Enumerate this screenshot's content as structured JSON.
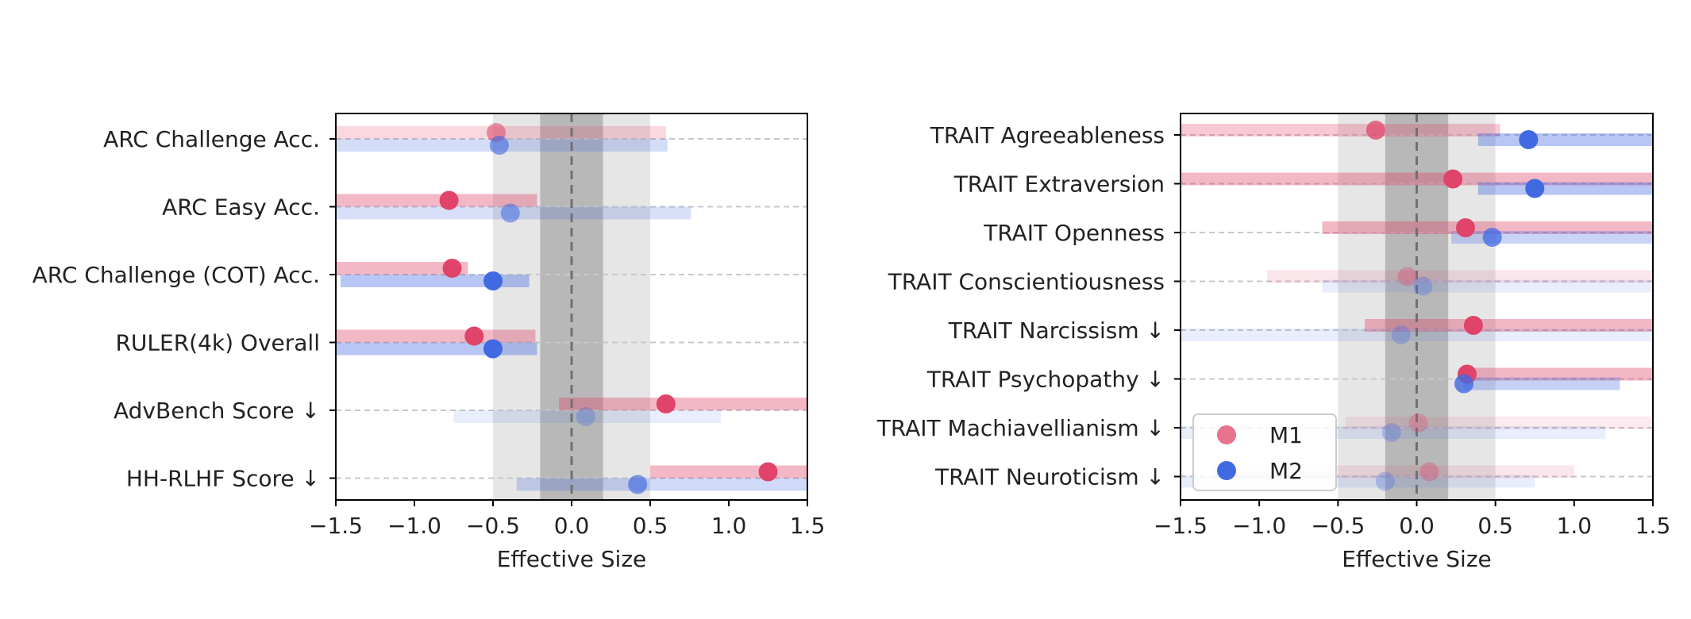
{
  "chart_data": [
    {
      "type": "dot-interval",
      "xlabel": "Effective Size",
      "xlim": [
        -1.5,
        1.5
      ],
      "xticks": [
        "−1.5",
        "−1.0",
        "−0.5",
        "0.0",
        "0.5",
        "1.0",
        "1.5"
      ],
      "shaded_bands": [
        {
          "range": [
            -0.5,
            0.5
          ],
          "shade": "light"
        },
        {
          "range": [
            -0.2,
            0.2
          ],
          "shade": "dark"
        }
      ],
      "reference_line": 0,
      "colors": {
        "M1": "#e0446a",
        "M2": "#4169e1"
      },
      "categories": [
        "ARC Challenge Acc.",
        "ARC Easy Acc.",
        "ARC Challenge (COT) Acc.",
        "RULER(4k) Overall",
        "AdvBench Score ↓",
        "HH-RLHF Score ↓"
      ],
      "series": [
        {
          "name": "M1",
          "values": [
            -0.48,
            -0.78,
            -0.76,
            -0.62,
            0.6,
            1.25
          ],
          "ci_low": [
            -1.5,
            -1.5,
            -1.5,
            -1.5,
            -0.08,
            0.5
          ],
          "ci_high": [
            0.6,
            -0.22,
            -0.66,
            -0.23,
            1.5,
            1.5
          ],
          "alpha": [
            0.55,
            1.0,
            1.0,
            1.0,
            1.0,
            1.0
          ]
        },
        {
          "name": "M2",
          "values": [
            -0.46,
            -0.39,
            -0.5,
            -0.5,
            0.09,
            0.42
          ],
          "ci_low": [
            -1.5,
            -1.5,
            -1.47,
            -1.5,
            -0.75,
            -0.35
          ],
          "ci_high": [
            0.61,
            0.76,
            -0.27,
            -0.22,
            0.95,
            1.5
          ],
          "alpha": [
            0.6,
            0.55,
            1.0,
            1.0,
            0.3,
            0.65
          ]
        }
      ]
    },
    {
      "type": "dot-interval",
      "xlabel": "Effective Size",
      "xlim": [
        -1.5,
        1.5
      ],
      "xticks": [
        "−1.5",
        "−1.0",
        "−0.5",
        "0.0",
        "0.5",
        "1.0",
        "1.5"
      ],
      "shaded_bands": [
        {
          "range": [
            -0.5,
            0.5
          ],
          "shade": "light"
        },
        {
          "range": [
            -0.2,
            0.2
          ],
          "shade": "dark"
        }
      ],
      "reference_line": 0,
      "legend": {
        "position": "lower-left",
        "entries": [
          "M1",
          "M2"
        ]
      },
      "colors": {
        "M1": "#e0446a",
        "M2": "#4169e1"
      },
      "categories": [
        "TRAIT Agreeableness",
        "TRAIT Extraversion",
        "TRAIT Openness",
        "TRAIT Conscientiousness",
        "TRAIT Narcissism ↓",
        "TRAIT Psychopathy ↓",
        "TRAIT Machiavellianism ↓",
        "TRAIT Neuroticism ↓"
      ],
      "series": [
        {
          "name": "M1",
          "values": [
            -0.26,
            0.23,
            0.31,
            -0.06,
            0.36,
            0.32,
            0.01,
            0.08
          ],
          "ci_low": [
            -1.5,
            -1.5,
            -0.6,
            -0.95,
            -0.33,
            0.3,
            -0.45,
            -1.3
          ],
          "ci_high": [
            0.53,
            1.5,
            1.5,
            1.5,
            1.5,
            1.5,
            1.5,
            1.0
          ],
          "alpha": [
            0.75,
            1.0,
            1.0,
            0.35,
            1.0,
            1.0,
            0.3,
            0.35
          ]
        },
        {
          "name": "M2",
          "values": [
            0.71,
            0.75,
            0.48,
            0.04,
            -0.1,
            0.3,
            -0.16,
            -0.2
          ],
          "ci_low": [
            0.39,
            0.39,
            0.22,
            -0.6,
            -1.5,
            0.3,
            -1.5,
            -1.5
          ],
          "ci_high": [
            1.5,
            1.5,
            1.5,
            1.5,
            1.5,
            1.29,
            1.2,
            0.75
          ],
          "alpha": [
            1.0,
            1.0,
            0.75,
            0.3,
            0.3,
            0.8,
            0.3,
            0.3
          ]
        }
      ]
    }
  ]
}
